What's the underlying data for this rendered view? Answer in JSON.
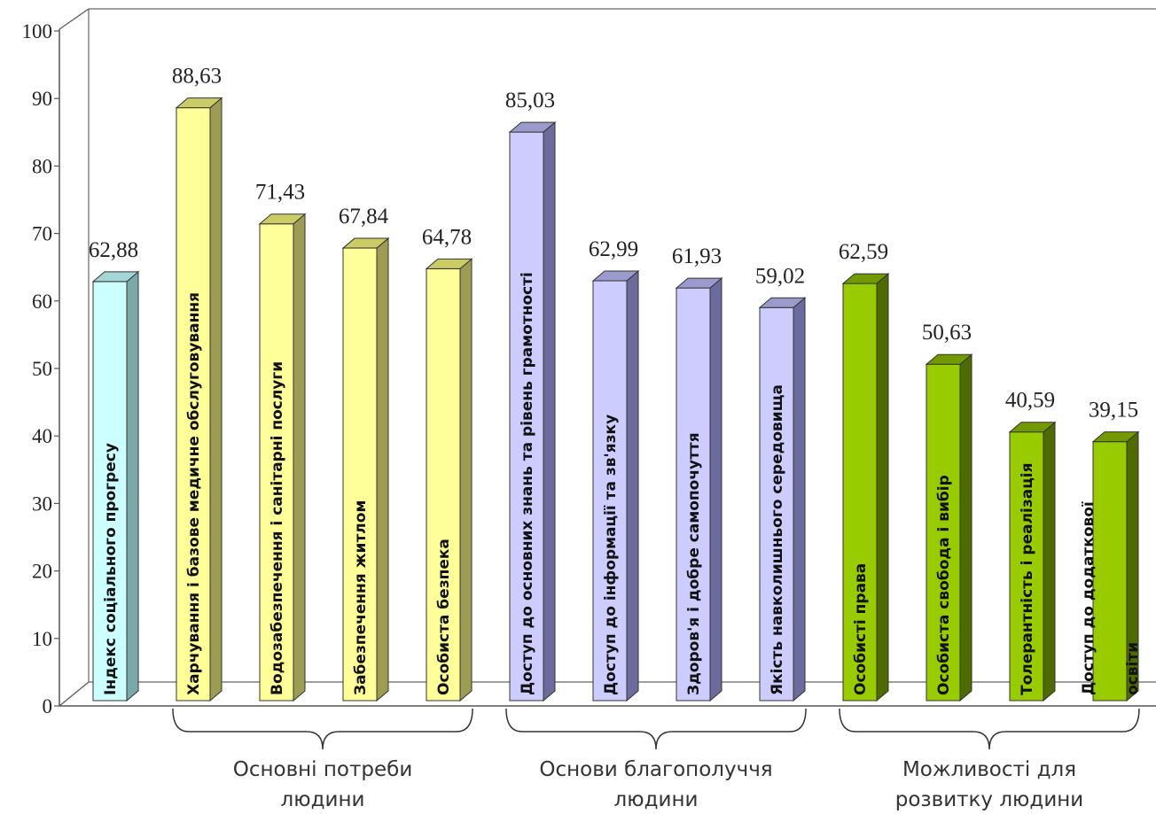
{
  "chart_data": {
    "type": "bar",
    "ylim": [
      0,
      100
    ],
    "yticks": [
      "0",
      "10",
      "20",
      "30",
      "40",
      "50",
      "60",
      "70",
      "80",
      "90",
      "100"
    ],
    "grid": false,
    "categories": [
      "Індекс соціального прогресу",
      "Харчування і базове медичне обслуговування",
      "Водозабезпечення і санітарні послуги",
      "Забезпечення житлом",
      "Особиста безпека",
      "Доступ до основних знань та рівень грамотності",
      "Доступ до інформації та зв'язку",
      "Здоров'я і добре самопочуття",
      "Якість навколишнього середовища",
      "Особисті права",
      "Особиста свобода і вибір",
      "Толерантність і реалізація",
      "Доступ до додаткової освіти"
    ],
    "values": [
      62.88,
      88.63,
      71.43,
      67.84,
      64.78,
      85.03,
      62.99,
      61.93,
      59.02,
      62.59,
      50.63,
      40.59,
      39.15
    ],
    "value_labels": [
      "62,88",
      "88,63",
      "71,43",
      "67,84",
      "64,78",
      "85,03",
      "62,99",
      "61,93",
      "59,02",
      "62,59",
      "50,63",
      "40,59",
      "39,15"
    ],
    "bar_label_lines": [
      [
        "Індекс соціального прогресу"
      ],
      [
        "Харчування і базове медичне обслуговування"
      ],
      [
        "Водозабезпечення і санітарні послуги"
      ],
      [
        "Забезпечення житлом"
      ],
      [
        "Особиста безпека"
      ],
      [
        "Доступ до основних знань та рівень грамотності"
      ],
      [
        "Доступ до інформації та зв'язку"
      ],
      [
        "Здоров'я і добре самопочуття"
      ],
      [
        "Якість навколишнього середовища"
      ],
      [
        "Особисті права"
      ],
      [
        "Особиста свобода і вибір"
      ],
      [
        "Толерантність і реалізація"
      ],
      [
        "Доступ до додаткової",
        "освіти"
      ]
    ],
    "bar_group": [
      0,
      1,
      1,
      1,
      1,
      2,
      2,
      2,
      2,
      3,
      3,
      3,
      3
    ],
    "groups": [
      {
        "label_lines": [
          "Основні потреби",
          "людини"
        ],
        "from": 1,
        "to": 4
      },
      {
        "label_lines": [
          "Основи благополуччя",
          "людини"
        ],
        "from": 5,
        "to": 8
      },
      {
        "label_lines": [
          "Можливості для",
          "розвитку людини"
        ],
        "from": 9,
        "to": 12
      }
    ],
    "colors": [
      {
        "front": "#ccffff",
        "side": "#7aa9a9",
        "top": "#a3d6d6"
      },
      {
        "front": "#ffff99",
        "side": "#9c9c52",
        "top": "#cccc66"
      },
      {
        "front": "#ccccff",
        "side": "#6b6b9e",
        "top": "#9a9acc"
      },
      {
        "front": "#99cc00",
        "side": "#4d6b00",
        "top": "#739900"
      }
    ]
  }
}
